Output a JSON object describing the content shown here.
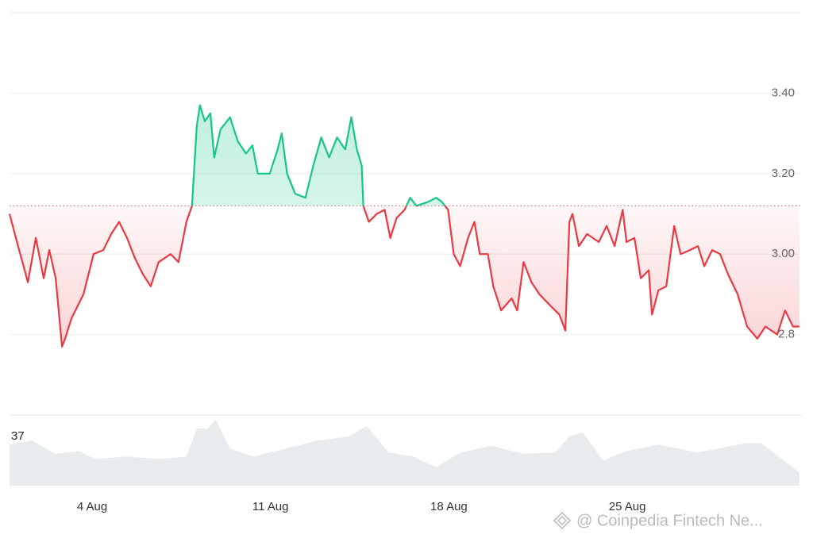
{
  "chart_data": {
    "type": "line",
    "x": [
      0.76,
      1.01,
      1.48,
      1.79,
      2.1,
      2.32,
      2.57,
      2.82,
      2.94,
      3.19,
      3.66,
      4.06,
      4.44,
      4.75,
      5.06,
      5.37,
      5.68,
      5.99,
      6.3,
      6.61,
      7.08,
      7.39,
      7.7,
      7.92,
      8.11,
      8.23,
      8.42,
      8.64,
      8.79,
      9.04,
      9.41,
      9.72,
      10.04,
      10.29,
      10.5,
      10.97,
      11.28,
      11.44,
      11.65,
      11.97,
      12.37,
      12.68,
      12.99,
      13.3,
      13.61,
      13.93,
      14.17,
      14.39,
      14.58,
      14.64,
      14.86,
      15.17,
      15.48,
      15.7,
      15.95,
      16.26,
      16.48,
      16.73,
      17.19,
      17.5,
      17.72,
      17.97,
      18.19,
      18.44,
      18.75,
      19.0,
      19.21,
      19.53,
      19.74,
      20.05,
      20.46,
      20.68,
      20.93,
      21.24,
      21.55,
      22.01,
      22.33,
      22.57,
      22.73,
      22.85,
      23.1,
      23.42,
      23.88,
      24.19,
      24.5,
      24.82,
      24.97,
      25.28,
      25.53,
      25.84,
      25.97,
      26.22,
      26.53,
      26.84,
      27.09,
      27.46,
      27.77,
      28.02,
      28.33,
      28.64,
      28.95,
      29.33,
      29.7,
      30.1,
      30.42,
      30.88,
      31.19,
      31.5,
      31.75
    ],
    "values": [
      3.1,
      3.04,
      2.93,
      3.04,
      2.94,
      3.01,
      2.94,
      2.77,
      2.79,
      2.84,
      2.9,
      3.0,
      3.01,
      3.05,
      3.08,
      3.04,
      2.99,
      2.95,
      2.92,
      2.98,
      3.0,
      2.98,
      3.08,
      3.12,
      3.32,
      3.37,
      3.33,
      3.35,
      3.24,
      3.31,
      3.34,
      3.28,
      3.25,
      3.27,
      3.2,
      3.2,
      3.26,
      3.3,
      3.2,
      3.15,
      3.14,
      3.22,
      3.29,
      3.24,
      3.29,
      3.26,
      3.34,
      3.26,
      3.22,
      3.12,
      3.08,
      3.1,
      3.11,
      3.04,
      3.09,
      3.11,
      3.14,
      3.12,
      3.13,
      3.14,
      3.13,
      3.11,
      3.0,
      2.97,
      3.04,
      3.08,
      3.0,
      3.0,
      2.92,
      2.86,
      2.89,
      2.86,
      2.98,
      2.93,
      2.9,
      2.87,
      2.85,
      2.81,
      3.08,
      3.1,
      3.02,
      3.05,
      3.03,
      3.07,
      3.02,
      3.11,
      3.03,
      3.04,
      2.94,
      2.96,
      2.85,
      2.91,
      2.92,
      3.07,
      3.0,
      3.01,
      3.02,
      2.97,
      3.01,
      3.0,
      2.95,
      2.9,
      2.82,
      2.79,
      2.82,
      2.8,
      2.86,
      2.82,
      2.82
    ],
    "baseline": 3.12,
    "up_color": "#16c784",
    "down_color": "#ea3943",
    "xlim": [
      0.76,
      31.85
    ],
    "xticks": [
      {
        "value": 4,
        "label": "4 Aug"
      },
      {
        "value": 11,
        "label": "11 Aug"
      },
      {
        "value": 18,
        "label": "18 Aug"
      },
      {
        "value": 25,
        "label": "25 Aug"
      }
    ],
    "ylim": [
      2.6,
      3.6
    ],
    "yticks": [
      {
        "value": 3.4,
        "label": "3.40"
      },
      {
        "value": 3.2,
        "label": "3.20"
      },
      {
        "value": 3.0,
        "label": "3.00"
      },
      2.8
    ],
    "grid": true,
    "volume": {
      "color": "#e9ecef",
      "x": [
        0.76,
        1.64,
        2.57,
        3.5,
        4.12,
        5.37,
        6.61,
        7.7,
        8.11,
        8.54,
        8.85,
        9.41,
        10.35,
        11.59,
        12.84,
        14.08,
        14.77,
        15.64,
        16.57,
        17.5,
        18.44,
        19.68,
        20.93,
        22.17,
        22.73,
        23.26,
        24.04,
        24.97,
        26.22,
        27.77,
        29.64,
        30.26,
        31.75
      ],
      "values": [
        31,
        34,
        24,
        26,
        20,
        22,
        20,
        22,
        43,
        43,
        50,
        28,
        22,
        28,
        34,
        37,
        45,
        25,
        22,
        14,
        25,
        30,
        24,
        25,
        37,
        40,
        19,
        26,
        31,
        25,
        32,
        32,
        10
      ],
      "ylim": [
        0,
        52
      ],
      "yticks": [
        37
      ]
    },
    "watermark": "@ Coinpedia Fintech Ne..."
  }
}
